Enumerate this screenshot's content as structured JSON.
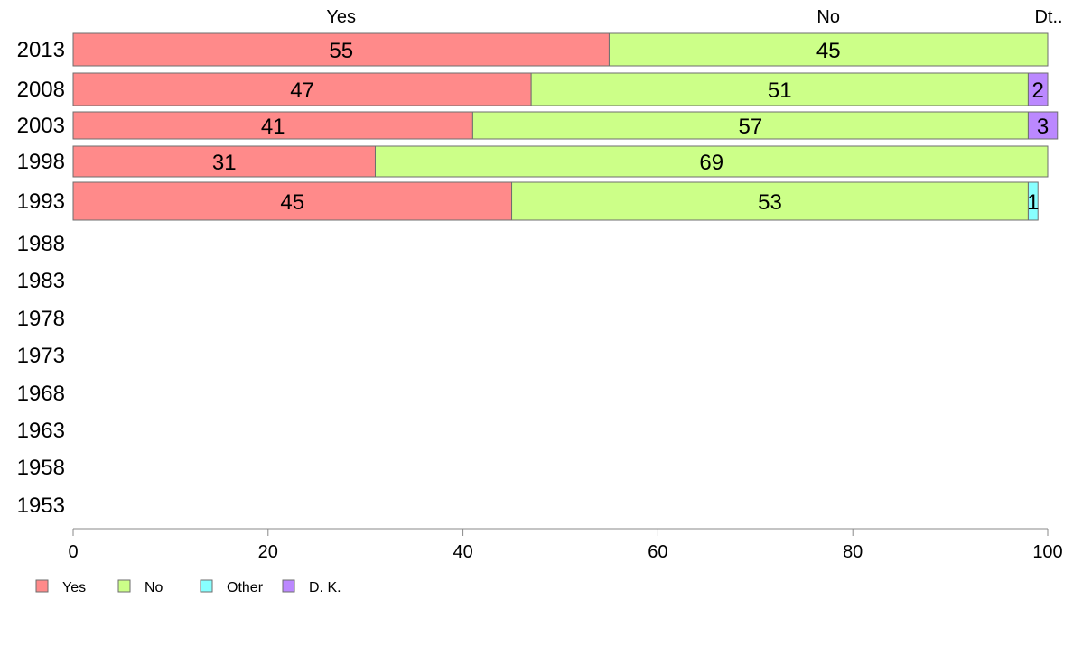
{
  "chart_data": {
    "type": "bar",
    "orientation": "horizontal",
    "stacked": true,
    "title": "",
    "xlabel": "",
    "ylabel": "",
    "xlim": [
      0,
      100
    ],
    "x_ticks": [
      0,
      20,
      40,
      60,
      80,
      100
    ],
    "categories": [
      "2013",
      "2008",
      "2003",
      "1998",
      "1993",
      "1988",
      "1983",
      "1978",
      "1973",
      "1968",
      "1963",
      "1958",
      "1953"
    ],
    "series": [
      {
        "name": "Yes",
        "color": "#ff8a8a",
        "values": [
          55,
          47,
          41,
          31,
          45,
          null,
          null,
          null,
          null,
          null,
          null,
          null,
          null
        ]
      },
      {
        "name": "No",
        "color": "#ccff88",
        "values": [
          45,
          51,
          57,
          69,
          53,
          null,
          null,
          null,
          null,
          null,
          null,
          null,
          null
        ]
      },
      {
        "name": "Other",
        "color": "#88ffff",
        "values": [
          0,
          0,
          0,
          0,
          1,
          null,
          null,
          null,
          null,
          null,
          null,
          null,
          null
        ]
      },
      {
        "name": "D. K.",
        "color": "#bb88ff",
        "values": [
          0,
          2,
          3,
          0,
          0,
          null,
          null,
          null,
          null,
          null,
          null,
          null,
          null
        ]
      }
    ],
    "top_labels": [
      "Yes",
      "No",
      "Dt.."
    ],
    "legend": {
      "position": "bottom-left",
      "items": [
        "Yes",
        "No",
        "Other",
        "D. K."
      ]
    },
    "grid": false
  }
}
